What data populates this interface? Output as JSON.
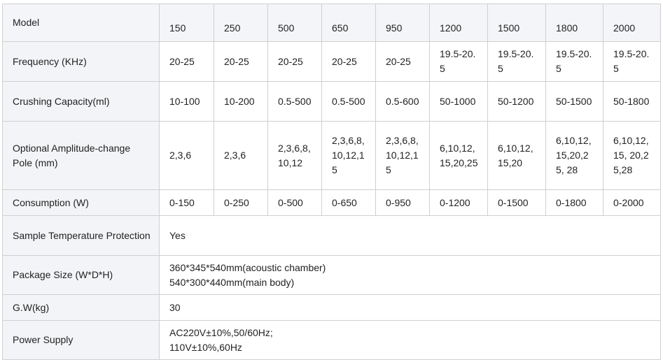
{
  "table": {
    "header": {
      "label": "Model",
      "values": [
        "150",
        "250",
        "500",
        "650",
        "950",
        "1200",
        "1500",
        "1800",
        "2000"
      ]
    },
    "rows": [
      {
        "label": "Frequency (KHz)",
        "values": [
          "20-25",
          "20-25",
          "20-25",
          "20-25",
          "20-25",
          "19.5-20.5",
          "19.5-20.5",
          "19.5-20.5",
          "19.5-20.5"
        ]
      },
      {
        "label": "Crushing Capacity(ml)",
        "values": [
          "10-100",
          "10-200",
          "0.5-500",
          "0.5-500",
          "0.5-600",
          "50-1000",
          "50-1200",
          "50-1500",
          "50-1800"
        ]
      },
      {
        "label": "Optional Amplitude-change Pole (mm)",
        "values": [
          "2,3,6",
          "2,3,6",
          "2,3,6,8,10,12",
          "2,3,6,8,10,12,15",
          "2,3,6,8,10,12,15",
          "6,10,12,15,20,25",
          "6,10,12,15,20",
          "6,10,12,15,20,25, 28",
          "6,10,12,15, 20,25,28"
        ]
      },
      {
        "label": "Consumption (W)",
        "values": [
          "0-150",
          "0-250",
          "0-500",
          "0-650",
          "0-950",
          "0-1200",
          "0-1500",
          "0-1800",
          "0-2000"
        ]
      }
    ],
    "span_rows": [
      {
        "label": "Sample Temperature Protection",
        "lines": [
          "Yes"
        ]
      },
      {
        "label": "Package Size (W*D*H)",
        "lines": [
          "360*345*540mm(acoustic chamber)",
          "540*300*440mm(main body)"
        ]
      },
      {
        "label": "G.W(kg)",
        "lines": [
          "30"
        ]
      },
      {
        "label": "Power Supply",
        "lines": [
          "AC220V±10%,50/60Hz;",
          "110V±10%,60Hz"
        ]
      }
    ]
  },
  "colors": {
    "label_bg": "#f3f4f7",
    "border": "#cfcfcf",
    "text": "#222222"
  }
}
